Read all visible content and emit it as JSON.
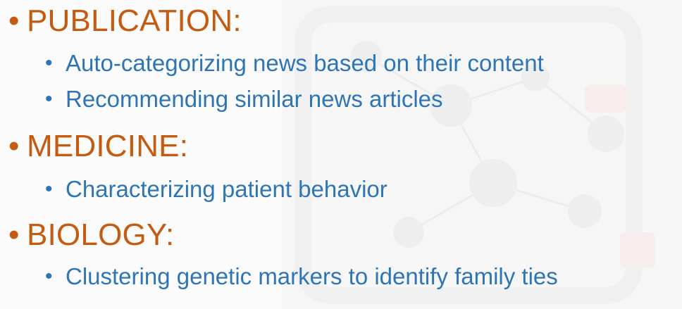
{
  "sections": [
    {
      "title": "PUBLICATION:",
      "items": [
        "Auto-categorizing news based on their content",
        "Recommending similar news articles"
      ]
    },
    {
      "title": "MEDICINE:",
      "items": [
        "Characterizing patient behavior"
      ]
    },
    {
      "title": "BIOLOGY:",
      "items": [
        "Clustering genetic markers to identify family ties"
      ]
    }
  ],
  "colors": {
    "heading": "#c55a11",
    "body": "#2e75b6",
    "background": "#fbfbfb"
  }
}
